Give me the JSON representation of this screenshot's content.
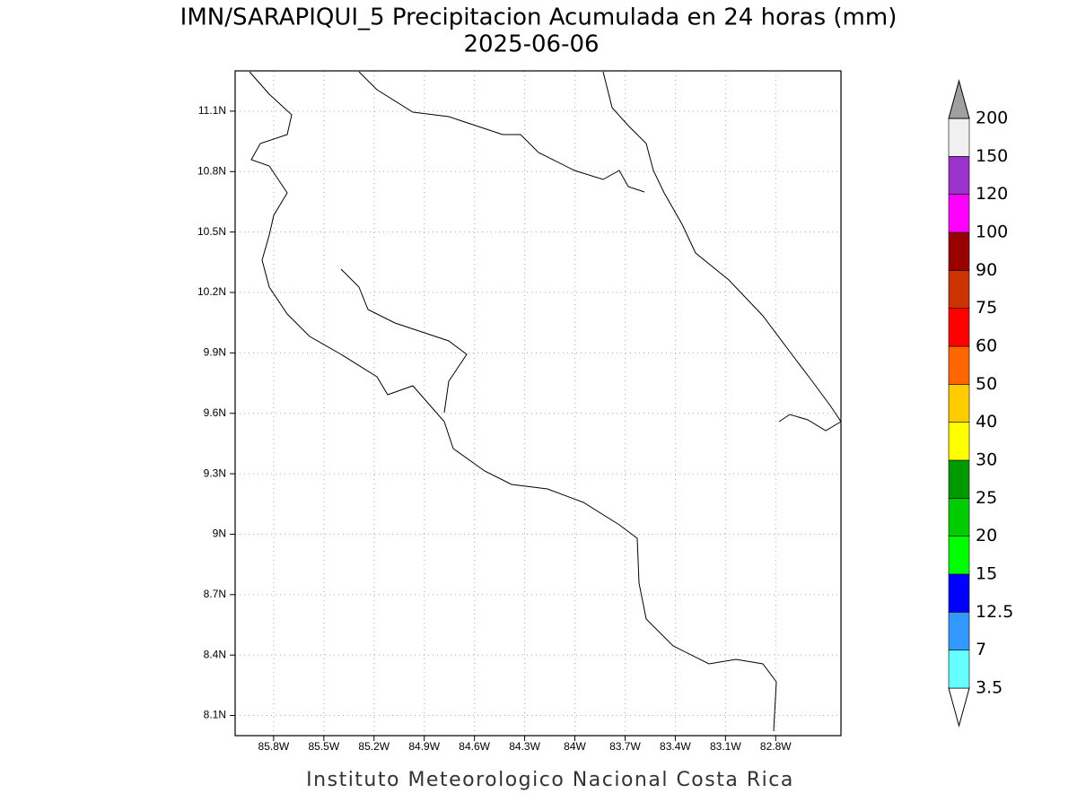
{
  "chart_data": {
    "type": "map",
    "title": "IMN/SARAPIQUI_5 Precipitacion Acumulada en 24 horas (mm)",
    "subtitle": "2025-06-06",
    "footer": "Instituto Meteorologico Nacional Costa Rica",
    "xlim": [
      -86.03,
      -82.41
    ],
    "ylim": [
      8.0,
      11.3
    ],
    "xticks": [
      {
        "value": -85.8,
        "label": "85.8W"
      },
      {
        "value": -85.5,
        "label": "85.5W"
      },
      {
        "value": -85.2,
        "label": "85.2W"
      },
      {
        "value": -84.9,
        "label": "84.9W"
      },
      {
        "value": -84.6,
        "label": "84.6W"
      },
      {
        "value": -84.3,
        "label": "84.3W"
      },
      {
        "value": -84.0,
        "label": "84W"
      },
      {
        "value": -83.7,
        "label": "83.7W"
      },
      {
        "value": -83.4,
        "label": "83.4W"
      },
      {
        "value": -83.1,
        "label": "83.1W"
      },
      {
        "value": -82.8,
        "label": "82.8W"
      }
    ],
    "yticks": [
      {
        "value": 8.1,
        "label": "8.1N"
      },
      {
        "value": 8.4,
        "label": "8.4N"
      },
      {
        "value": 8.7,
        "label": "8.7N"
      },
      {
        "value": 9.0,
        "label": "9N"
      },
      {
        "value": 9.3,
        "label": "9.3N"
      },
      {
        "value": 9.6,
        "label": "9.6N"
      },
      {
        "value": 9.9,
        "label": "9.9N"
      },
      {
        "value": 10.2,
        "label": "10.2N"
      },
      {
        "value": 10.5,
        "label": "10.5N"
      },
      {
        "value": 10.8,
        "label": "10.8N"
      },
      {
        "value": 11.1,
        "label": "11.1N"
      }
    ],
    "grid": true,
    "colorbar": {
      "levels": [
        3.5,
        7,
        12.5,
        15,
        20,
        25,
        30,
        40,
        50,
        60,
        75,
        90,
        100,
        120,
        150,
        200
      ],
      "colors": [
        "#ffffff",
        "#66ffff",
        "#3399ff",
        "#0000ff",
        "#00ff00",
        "#00cc00",
        "#009900",
        "#ffff00",
        "#ffcc00",
        "#ff6600",
        "#ff0000",
        "#cc3300",
        "#990000",
        "#ff00ff",
        "#9933cc",
        "#f0f0f0",
        "#a0a0a0"
      ]
    }
  }
}
